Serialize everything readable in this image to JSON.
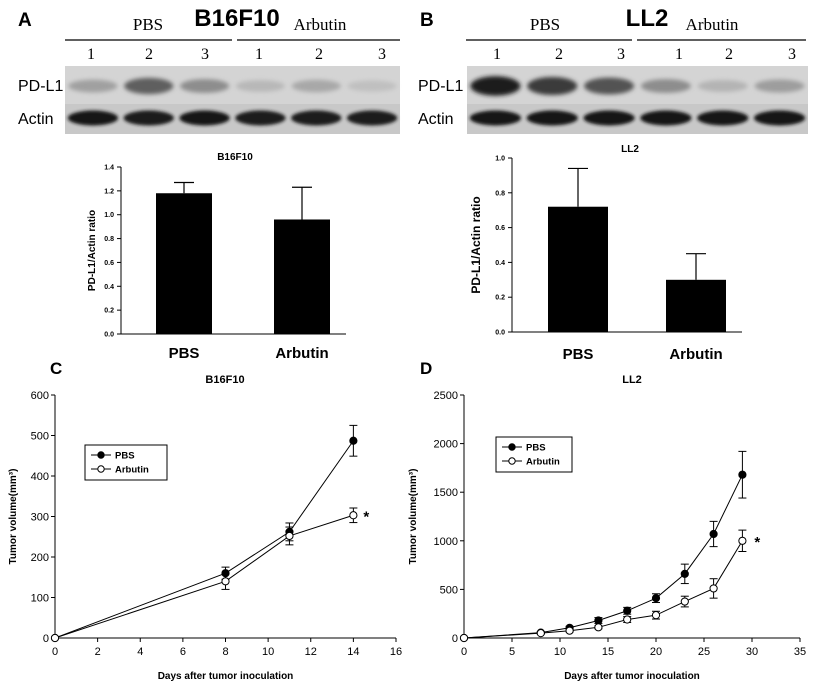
{
  "blots": [
    {
      "panel_letter": "A",
      "cell_line": "B16F10",
      "groups": [
        "PBS",
        "Arbutin"
      ],
      "lanes": [
        "1",
        "2",
        "3",
        "1",
        "2",
        "3"
      ],
      "rows": [
        "PD-L1",
        "Actin"
      ],
      "pdl1_intensity": [
        0.28,
        0.62,
        0.38,
        0.16,
        0.24,
        0.12
      ],
      "actin_intensity": [
        0.95,
        0.92,
        0.94,
        0.9,
        0.92,
        0.9
      ]
    },
    {
      "panel_letter": "B",
      "cell_line": "LL2",
      "groups": [
        "PBS",
        "Arbutin"
      ],
      "lanes": [
        "1",
        "2",
        "3",
        "1",
        "2",
        "3"
      ],
      "rows": [
        "PD-L1",
        "Actin"
      ],
      "pdl1_intensity": [
        0.95,
        0.8,
        0.68,
        0.38,
        0.18,
        0.3
      ],
      "actin_intensity": [
        0.95,
        0.95,
        0.95,
        0.93,
        0.93,
        0.95
      ]
    }
  ],
  "chart_data": [
    {
      "type": "bar",
      "title": "B16F10",
      "categories": [
        "PBS",
        "Arbutin"
      ],
      "values": [
        1.18,
        0.96
      ],
      "errors": [
        0.09,
        0.27
      ],
      "ylabel": "PD-L1/Actin ratio",
      "xlabel": "",
      "ylim": [
        0,
        1.4
      ],
      "yticks": [
        "0.0",
        "0.2",
        "0.4",
        "0.6",
        "0.8",
        "1.0",
        "1.2",
        "1.4"
      ],
      "color": "#000000"
    },
    {
      "type": "bar",
      "title": "LL2",
      "categories": [
        "PBS",
        "Arbutin"
      ],
      "values": [
        0.72,
        0.3
      ],
      "errors": [
        0.22,
        0.15
      ],
      "ylabel": "PD-L1/Actin ratio",
      "xlabel": "",
      "ylim": [
        0,
        1.0
      ],
      "yticks": [
        "0.0",
        "0.2",
        "0.4",
        "0.6",
        "0.8",
        "1.0"
      ],
      "color": "#000000"
    },
    {
      "type": "line",
      "panel_letter": "C",
      "title": "B16F10",
      "xlabel": "Days after tumor inoculation",
      "ylabel": "Tumor volume(mm³)",
      "xlim": [
        0,
        16
      ],
      "ylim": [
        0,
        600
      ],
      "xticks": [
        "0",
        "2",
        "4",
        "6",
        "8",
        "10",
        "12",
        "14",
        "16"
      ],
      "yticks": [
        "0",
        "100",
        "200",
        "300",
        "400",
        "500",
        "600"
      ],
      "legend_position": "upper-left",
      "series": [
        {
          "name": "PBS",
          "marker": "filled",
          "x": [
            0,
            8,
            11,
            14
          ],
          "y": [
            0,
            160,
            262,
            487
          ],
          "err": [
            0,
            15,
            22,
            38
          ]
        },
        {
          "name": "Arbutin",
          "marker": "open",
          "x": [
            0,
            8,
            11,
            14
          ],
          "y": [
            0,
            140,
            252,
            303
          ],
          "err": [
            0,
            20,
            22,
            18
          ]
        }
      ],
      "annotation": "*"
    },
    {
      "type": "line",
      "panel_letter": "D",
      "title": "LL2",
      "xlabel": "Days after tumor inoculation",
      "ylabel": "Tumor volume(mm³)",
      "xlim": [
        0,
        35
      ],
      "ylim": [
        0,
        2500
      ],
      "xticks": [
        "0",
        "5",
        "10",
        "15",
        "20",
        "25",
        "30",
        "35"
      ],
      "yticks": [
        "0",
        "500",
        "1000",
        "1500",
        "2000",
        "2500"
      ],
      "legend_position": "upper-left",
      "series": [
        {
          "name": "PBS",
          "marker": "filled",
          "x": [
            0,
            8,
            11,
            14,
            17,
            20,
            23,
            26,
            29
          ],
          "y": [
            0,
            55,
            105,
            180,
            280,
            410,
            660,
            1070,
            1680
          ],
          "err": [
            0,
            10,
            15,
            30,
            35,
            45,
            100,
            130,
            240
          ]
        },
        {
          "name": "Arbutin",
          "marker": "open",
          "x": [
            0,
            8,
            11,
            14,
            17,
            20,
            23,
            26,
            29
          ],
          "y": [
            0,
            50,
            75,
            110,
            190,
            235,
            375,
            510,
            1000
          ],
          "err": [
            0,
            10,
            12,
            15,
            30,
            40,
            55,
            100,
            110
          ]
        }
      ],
      "annotation": "*"
    }
  ]
}
